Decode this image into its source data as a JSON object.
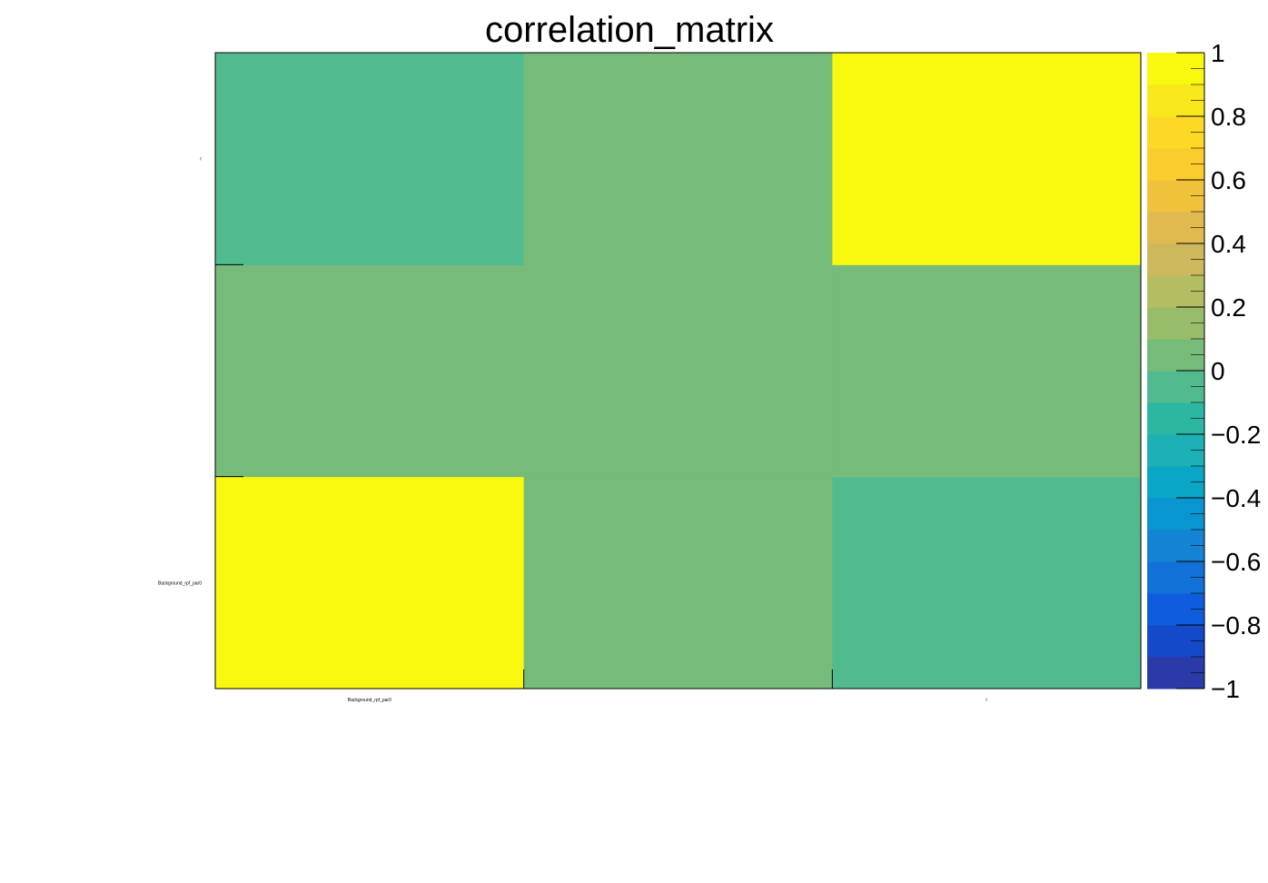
{
  "chart_data": {
    "type": "heatmap",
    "title": "correlation_matrix",
    "x_categories": [
      "Background_rpf_par0",
      "",
      "r"
    ],
    "y_categories": [
      "Background_rpf_par0",
      "",
      "r"
    ],
    "values": [
      [
        1,
        0,
        -0.05
      ],
      [
        0,
        0,
        0
      ],
      [
        -0.05,
        0,
        1
      ]
    ],
    "zlim": [
      -1,
      1
    ],
    "palette": {
      "levels": 20,
      "tick_labels": [
        "1",
        "0.8",
        "0.6",
        "0.4",
        "0.2",
        "0",
        "−0.2",
        "−0.4",
        "−0.6",
        "−0.8",
        "−1"
      ],
      "tick_values": [
        1,
        0.8,
        0.6,
        0.4,
        0.2,
        0,
        -0.2,
        -0.4,
        -0.6,
        -0.8,
        -1
      ],
      "colors": [
        "#2a3ba8",
        "#1449c9",
        "#0f5ddc",
        "#1271d8",
        "#1383d3",
        "#0995cf",
        "#0aa6c5",
        "#1db0b5",
        "#2cb7a3",
        "#52ba8f",
        "#77bb7a",
        "#98bd6a",
        "#b4bd61",
        "#cdb95c",
        "#e0ba4f",
        "#f0c13a",
        "#fbcd2c",
        "#fbd926",
        "#f8e71b",
        "#f9f90f"
      ]
    }
  }
}
